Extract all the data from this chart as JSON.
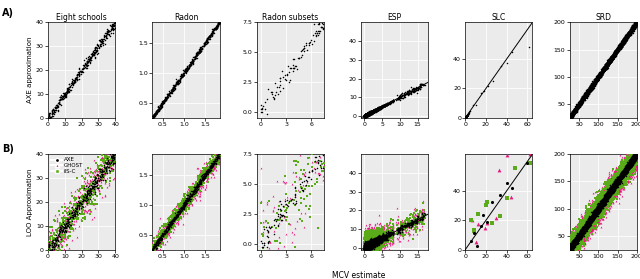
{
  "col_titles": [
    "Eight schools",
    "Radon",
    "Radon subsets",
    "ESP",
    "SLC",
    "SRD"
  ],
  "row_A_ylabel": "AXE approximation",
  "row_B_ylabel": "LOO Approximation",
  "xlabel": "MCV estimate",
  "legend_labels": [
    "AXE",
    "GHOST",
    "iIS-C"
  ],
  "legend_colors": [
    "#000000",
    "#e8177f",
    "#5aaa1a"
  ],
  "legend_markers": [
    "o",
    "^",
    "s"
  ],
  "panels": [
    {
      "xlim": [
        0,
        40
      ],
      "ylim": [
        0,
        40
      ],
      "xticks": [
        0,
        10,
        20,
        30,
        40
      ],
      "yticks": [
        0,
        10,
        20,
        30,
        40
      ],
      "has_diag": false,
      "n_dense": 400,
      "few": false
    },
    {
      "xlim": [
        0.25,
        1.85
      ],
      "ylim": [
        0.25,
        1.85
      ],
      "xticks": [
        0.5,
        1.0,
        1.5
      ],
      "yticks": [
        0.5,
        1.0,
        1.5
      ],
      "has_diag": false,
      "n_dense": 600,
      "few": false
    },
    {
      "xlim": [
        -0.5,
        7.5
      ],
      "ylim": [
        -0.5,
        7.5
      ],
      "xticks": [
        0,
        3,
        6
      ],
      "yticks": [
        0.0,
        2.5,
        5.0,
        7.5
      ],
      "has_diag": false,
      "n_dense": 100,
      "few": false
    },
    {
      "xlim": [
        -1,
        18
      ],
      "ylim": [
        -1,
        50
      ],
      "xticks": [
        0,
        5,
        10,
        15
      ],
      "yticks": [
        0,
        10,
        20,
        30,
        40
      ],
      "has_diag": true,
      "n_dense": 5000,
      "few": false
    },
    {
      "xlim": [
        0,
        65
      ],
      "ylim": [
        0,
        65
      ],
      "xticks": [
        0,
        20,
        40,
        60
      ],
      "yticks": [
        0,
        20,
        40
      ],
      "has_diag": true,
      "n_dense": 0,
      "few": true
    },
    {
      "xlim": [
        25,
        200
      ],
      "ylim": [
        25,
        200
      ],
      "xticks": [
        50,
        100,
        150,
        200
      ],
      "yticks": [
        50,
        100,
        150,
        200
      ],
      "has_diag": false,
      "n_dense": 5000,
      "few": false
    }
  ],
  "bg_color": "#ebebeb",
  "dot_color_A": "#000000",
  "dot_color_GHOST": "#e8177f",
  "dot_color_iISC": "#5aaa1a"
}
